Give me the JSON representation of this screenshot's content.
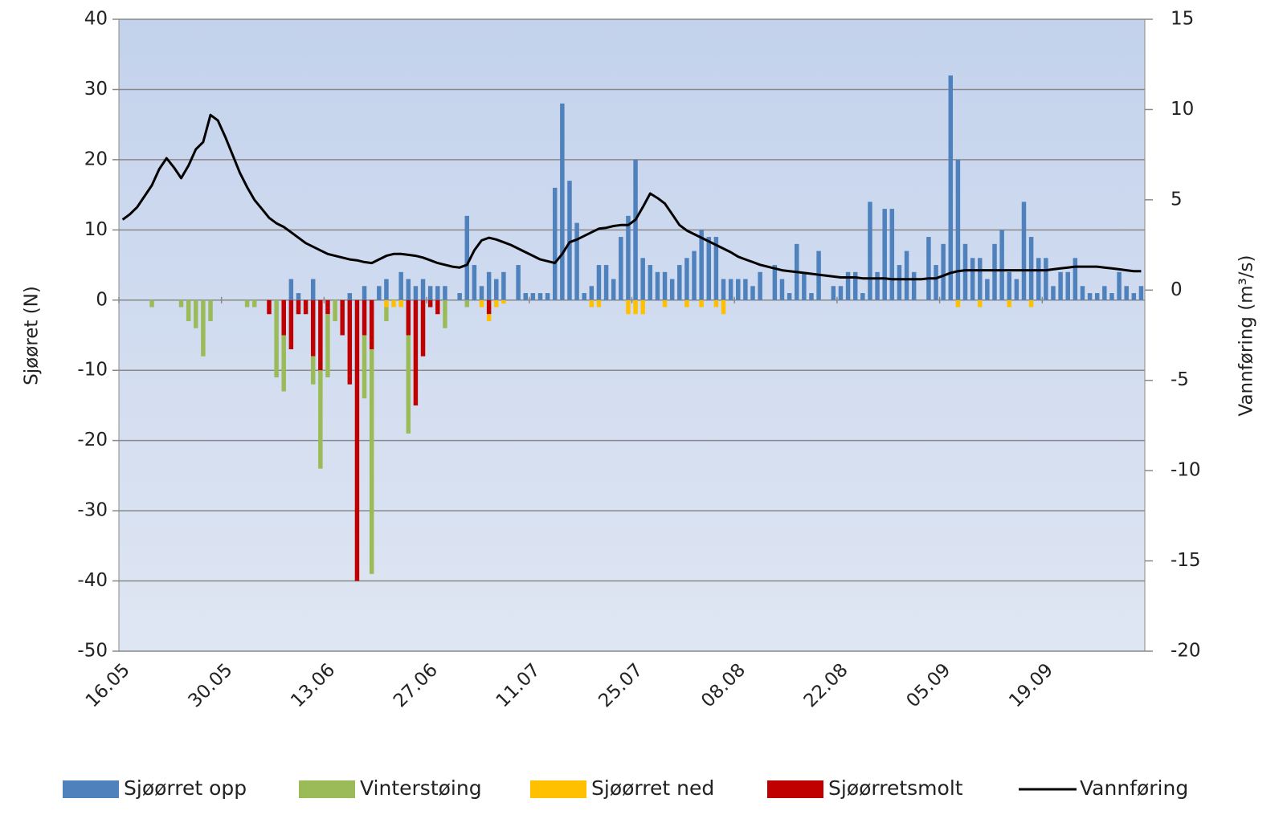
{
  "chart_data": {
    "type": "bar",
    "ylabel": "Sjøøret (N)",
    "y2label": "Vannføring (m³/s)",
    "ylim": [
      -50,
      40
    ],
    "yticks": [
      -50,
      -40,
      -30,
      -20,
      -10,
      0,
      10,
      20,
      30,
      40
    ],
    "y2lim": [
      -20,
      15
    ],
    "y2ticks": [
      -20,
      -15,
      -10,
      -5,
      0,
      5,
      10,
      15
    ],
    "grid": true,
    "stacked": true,
    "legend": "bottom",
    "categories": [
      "16.05",
      null,
      null,
      null,
      null,
      null,
      null,
      null,
      null,
      null,
      null,
      null,
      null,
      null,
      "30.05",
      null,
      null,
      null,
      null,
      null,
      null,
      null,
      null,
      null,
      null,
      null,
      null,
      null,
      "13.06",
      null,
      null,
      null,
      null,
      null,
      null,
      null,
      null,
      null,
      null,
      null,
      null,
      null,
      "27.06",
      null,
      null,
      null,
      null,
      null,
      null,
      null,
      null,
      null,
      null,
      null,
      null,
      null,
      "11.07",
      null,
      null,
      null,
      null,
      null,
      null,
      null,
      null,
      null,
      null,
      null,
      null,
      null,
      "25.07",
      null,
      null,
      null,
      null,
      null,
      null,
      null,
      null,
      null,
      null,
      null,
      null,
      null,
      "08.08",
      null,
      null,
      null,
      null,
      null,
      null,
      null,
      null,
      null,
      null,
      null,
      null,
      null,
      "22.08",
      null,
      null,
      null,
      null,
      null,
      null,
      null,
      null,
      null,
      null,
      null,
      null,
      null,
      "05.09",
      null,
      null,
      null,
      null,
      null,
      null,
      null,
      null,
      null,
      null,
      null,
      null,
      null,
      "19.09",
      null,
      null,
      null,
      null,
      null,
      null,
      null,
      null,
      null,
      null,
      null,
      null,
      null
    ],
    "series": [
      {
        "name": "Sjøørret opp",
        "color": "#4f81bd",
        "values": [
          0,
          0,
          0,
          0,
          0,
          0,
          0,
          0,
          0,
          0,
          0,
          0,
          0,
          0,
          0,
          0,
          0,
          0,
          0,
          0,
          0,
          0,
          0,
          3,
          1,
          0,
          3,
          0,
          0,
          0,
          0,
          1,
          0,
          2,
          0,
          2,
          3,
          0,
          4,
          3,
          2,
          3,
          2,
          2,
          2,
          0,
          1,
          12,
          5,
          2,
          4,
          3,
          4,
          0,
          5,
          1,
          1,
          1,
          1,
          16,
          28,
          17,
          11,
          1,
          2,
          5,
          5,
          3,
          9,
          12,
          20,
          6,
          5,
          4,
          4,
          3,
          5,
          6,
          7,
          10,
          9,
          9,
          3,
          3,
          3,
          3,
          2,
          4,
          0,
          5,
          3,
          1,
          8,
          4,
          1,
          7,
          0,
          2,
          2,
          4,
          4,
          1,
          14,
          4,
          13,
          13,
          5,
          7,
          4,
          0,
          9,
          5,
          8,
          32,
          20,
          8,
          6,
          6,
          3,
          8,
          10,
          4,
          3,
          14,
          9,
          6,
          6,
          2,
          4,
          4,
          6,
          2,
          1,
          1,
          2,
          1,
          4,
          2,
          1,
          2
        ]
      },
      {
        "name": "Vinterstøing",
        "color": "#9bbb59",
        "values": [
          0,
          0,
          0,
          0,
          -1,
          0,
          0,
          0,
          -1,
          -3,
          -4,
          -8,
          -3,
          0,
          0,
          0,
          0,
          -1,
          -1,
          0,
          0,
          -11,
          -8,
          0,
          0,
          0,
          -4,
          -14,
          -9,
          -3,
          0,
          0,
          0,
          -9,
          -32,
          0,
          -2,
          0,
          0,
          -14,
          0,
          0,
          0,
          0,
          -4,
          0,
          0,
          -1,
          0,
          0,
          0,
          0,
          0,
          0,
          0,
          0,
          0,
          0,
          0,
          0,
          0,
          0,
          0,
          0,
          0,
          0,
          0,
          0,
          0,
          0,
          0,
          0,
          0,
          0,
          0,
          0,
          0,
          0,
          0,
          0,
          0,
          0,
          0,
          0,
          0,
          0,
          0,
          0,
          0,
          0,
          0,
          0,
          0,
          0,
          0,
          0,
          0,
          0,
          0,
          0,
          0,
          0,
          0,
          0,
          0,
          0,
          0,
          0,
          0,
          0,
          0,
          0,
          0,
          0,
          0,
          0,
          0,
          0,
          0,
          0,
          0,
          0,
          0,
          0,
          0,
          0,
          0,
          0,
          0,
          0,
          0,
          0,
          0,
          0,
          0,
          0,
          0,
          0,
          0,
          0
        ]
      },
      {
        "name": "Sjøørret ned",
        "color": "#ffc000",
        "values": [
          0,
          0,
          0,
          0,
          0,
          0,
          0,
          0,
          0,
          0,
          0,
          0,
          0,
          0,
          0,
          0,
          0,
          0,
          0,
          0,
          0,
          0,
          0,
          0,
          0,
          0,
          0,
          0,
          0,
          0,
          0,
          0,
          0,
          0,
          0,
          0,
          -1,
          -1,
          -1,
          0,
          0,
          0,
          0,
          0,
          0,
          0,
          0,
          0,
          0,
          -1,
          -1,
          -1,
          -0.5,
          0,
          0,
          0,
          0,
          0,
          0,
          0,
          0,
          0,
          0,
          0,
          -1,
          -1,
          0,
          0,
          0,
          -2,
          -2,
          -2,
          0,
          0,
          -1,
          0,
          0,
          -1,
          0,
          -1,
          0,
          -1,
          -2,
          0,
          0,
          0,
          0,
          0,
          0,
          0,
          0,
          0,
          0,
          0,
          0,
          0,
          0,
          0,
          0,
          0,
          0,
          0,
          0,
          0,
          0,
          0,
          0,
          0,
          0,
          0,
          0,
          0,
          0,
          0,
          -1,
          0,
          0,
          -1,
          0,
          0,
          0,
          -1,
          0,
          0,
          -1,
          0,
          0,
          0,
          0,
          0,
          0,
          0,
          0,
          0,
          0,
          0,
          0,
          0,
          0,
          0
        ]
      },
      {
        "name": "Sjøørretsmolt",
        "color": "#c00000",
        "values": [
          0,
          0,
          0,
          0,
          0,
          0,
          0,
          0,
          0,
          0,
          0,
          0,
          0,
          0,
          0,
          0,
          0,
          0,
          0,
          0,
          -2,
          0,
          -5,
          -7,
          -2,
          -2,
          -8,
          -10,
          -2,
          0,
          -5,
          -12,
          -40,
          -5,
          -7,
          0,
          0,
          0,
          0,
          -5,
          -15,
          -8,
          -1,
          -2,
          0,
          0,
          0,
          0,
          0,
          0,
          -2,
          0,
          0,
          0,
          0,
          0,
          0,
          0,
          0,
          0,
          0,
          0,
          0,
          0,
          0,
          0,
          0,
          0,
          0,
          0,
          0,
          0,
          0,
          0,
          0,
          0,
          0,
          0,
          0,
          0,
          0,
          0,
          0,
          0,
          0,
          0,
          0,
          0,
          0,
          0,
          0,
          0,
          0,
          0,
          0,
          0,
          0,
          0,
          0,
          0,
          0,
          0,
          0,
          0,
          0,
          0,
          0,
          0,
          0,
          0,
          0,
          0,
          0,
          0,
          0,
          0,
          0,
          0,
          0,
          0,
          0,
          0,
          0,
          0,
          0,
          0,
          0,
          0,
          0,
          0,
          0,
          0,
          0,
          0,
          0,
          0,
          0,
          0,
          0,
          0
        ]
      },
      {
        "name": "Vannføring",
        "color": "#000000",
        "type": "line",
        "axis": "y2",
        "values": [
          3.9,
          4.2,
          4.6,
          5.2,
          5.8,
          6.7,
          7.3,
          6.8,
          6.2,
          6.9,
          7.8,
          8.2,
          9.7,
          9.4,
          8.5,
          7.5,
          6.5,
          5.7,
          5.0,
          4.5,
          4.0,
          3.7,
          3.5,
          3.2,
          2.9,
          2.6,
          2.4,
          2.2,
          2.0,
          1.9,
          1.8,
          1.7,
          1.65,
          1.55,
          1.5,
          1.7,
          1.9,
          2.0,
          2.0,
          1.95,
          1.9,
          1.8,
          1.65,
          1.5,
          1.4,
          1.3,
          1.25,
          1.4,
          2.2,
          2.75,
          2.9,
          2.8,
          2.65,
          2.5,
          2.3,
          2.1,
          1.9,
          1.7,
          1.6,
          1.5,
          2.0,
          2.65,
          2.8,
          3.0,
          3.2,
          3.4,
          3.45,
          3.55,
          3.6,
          3.6,
          3.9,
          4.6,
          5.35,
          5.1,
          4.8,
          4.2,
          3.6,
          3.3,
          3.1,
          2.9,
          2.7,
          2.5,
          2.3,
          2.1,
          1.85,
          1.7,
          1.55,
          1.4,
          1.3,
          1.2,
          1.1,
          1.05,
          1.0,
          0.95,
          0.9,
          0.85,
          0.8,
          0.75,
          0.7,
          0.7,
          0.7,
          0.65,
          0.65,
          0.65,
          0.65,
          0.6,
          0.6,
          0.6,
          0.6,
          0.6,
          0.65,
          0.65,
          0.8,
          0.95,
          1.05,
          1.1,
          1.1,
          1.1,
          1.1,
          1.1,
          1.1,
          1.1,
          1.1,
          1.1,
          1.1,
          1.1,
          1.1,
          1.15,
          1.2,
          1.25,
          1.3,
          1.3,
          1.3,
          1.3,
          1.25,
          1.2,
          1.15,
          1.1,
          1.05,
          1.05
        ]
      }
    ]
  }
}
